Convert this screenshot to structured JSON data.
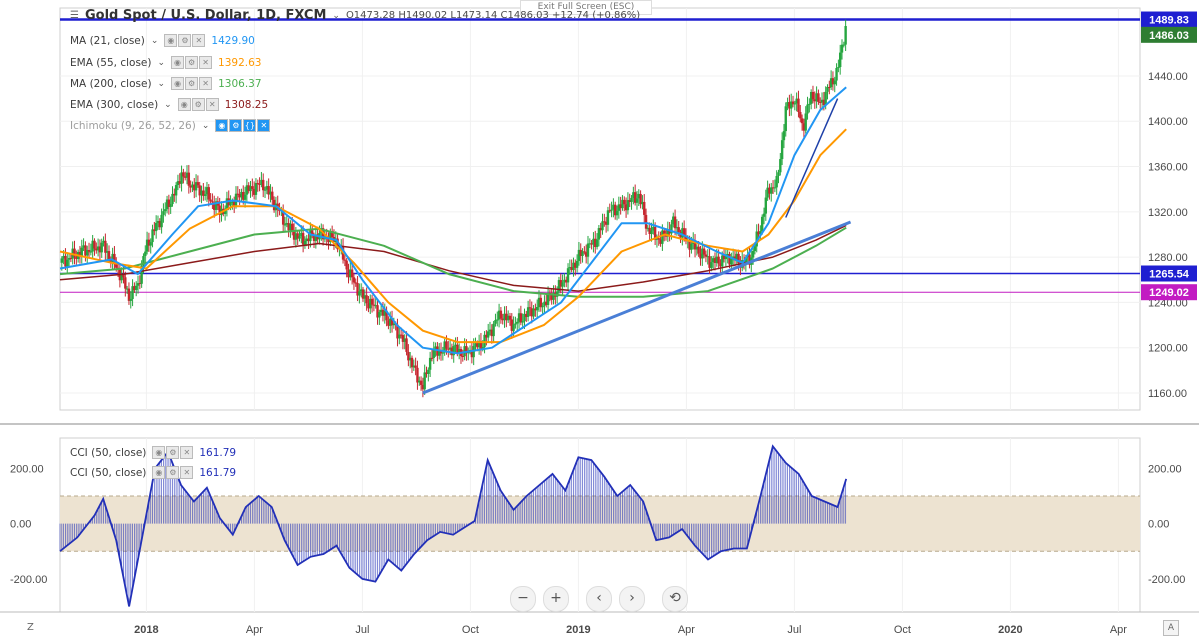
{
  "header": {
    "title": "Gold Spot / U.S. Dollar, 1D, FXCM",
    "ohlc": "O1473.28  H1490.02  L1473.14  C1486.03  +12.74 (+0.86%)",
    "exit_fullscreen": "Exit Full Screen (ESC)"
  },
  "indicators": [
    {
      "label": "MA (21, close)",
      "value": "1429.90",
      "color": "#2196f3"
    },
    {
      "label": "EMA (55, close)",
      "value": "1392.63",
      "color": "#ff9800"
    },
    {
      "label": "MA (200, close)",
      "value": "1306.37",
      "color": "#4caf50"
    },
    {
      "label": "EMA (300, close)",
      "value": "1308.25",
      "color": "#8b1a1a"
    },
    {
      "label": "Ichimoku (9, 26, 52, 26)",
      "value": "",
      "color": "#9e9e9e"
    }
  ],
  "cci_legend": [
    {
      "label": "CCI (50, close)",
      "value": "161.79"
    },
    {
      "label": "CCI (50, close)",
      "value": "161.79"
    }
  ],
  "colors": {
    "up": "#26a640",
    "down": "#c6262e",
    "ma21": "#2196f3",
    "ema55": "#ff9800",
    "ma200": "#4caf50",
    "ema300": "#8b1a1a",
    "hline": "#1f1fd1",
    "magenta": "#c21bc2",
    "trend": "#4a7fd6",
    "cci": "#2230b8",
    "band": "#ede3d1"
  },
  "controls": {
    "zoom_out": "−",
    "zoom_in": "+",
    "prev": "‹",
    "next": "›",
    "reset": "⟲"
  },
  "corner_labels": {
    "left": "Z",
    "right": "A"
  },
  "chart_data": {
    "type": "candlestick",
    "symbol": "XAUUSD",
    "interval": "1D",
    "price_axis": {
      "ticks": [
        1160,
        1200,
        1240,
        1280,
        1320,
        1360,
        1400,
        1440
      ],
      "ylim": [
        1145,
        1500
      ]
    },
    "price_tags": [
      {
        "value": "1489.83",
        "color": "#1f1fd1",
        "text_color": "#ffffff"
      },
      {
        "value": "1486.03",
        "color": "#2e7d32",
        "text_color": "#ffffff"
      },
      {
        "value": "1265.54",
        "color": "#1f1fd1",
        "text_color": "#ffffff"
      },
      {
        "value": "1249.02",
        "color": "#c21bc2",
        "text_color": "#ffffff"
      }
    ],
    "horizontal_lines": [
      {
        "price": 1489.83,
        "color": "#1f1fd1"
      },
      {
        "price": 1265.54,
        "color": "#1f1fd1"
      },
      {
        "price": 1249.02,
        "color": "#c21bc2"
      }
    ],
    "x_axis": {
      "labels": [
        "2018",
        "Apr",
        "Jul",
        "Oct",
        "2019",
        "Apr",
        "Jul",
        "Oct",
        "2020",
        "Apr"
      ],
      "label_dates": [
        2018.0,
        2018.25,
        2018.5,
        2018.75,
        2019.0,
        2019.25,
        2019.5,
        2019.75,
        2020.0,
        2020.25
      ],
      "xlim": [
        2017.8,
        2020.3
      ]
    },
    "price_path": [
      [
        2017.8,
        1275
      ],
      [
        2017.85,
        1285
      ],
      [
        2017.9,
        1290
      ],
      [
        2017.94,
        1265
      ],
      [
        2017.96,
        1245
      ],
      [
        2017.98,
        1255
      ],
      [
        2018.0,
        1290
      ],
      [
        2018.04,
        1320
      ],
      [
        2018.07,
        1340
      ],
      [
        2018.08,
        1355
      ],
      [
        2018.1,
        1345
      ],
      [
        2018.14,
        1335
      ],
      [
        2018.17,
        1320
      ],
      [
        2018.2,
        1330
      ],
      [
        2018.24,
        1340
      ],
      [
        2018.27,
        1345
      ],
      [
        2018.3,
        1325
      ],
      [
        2018.33,
        1305
      ],
      [
        2018.36,
        1295
      ],
      [
        2018.4,
        1300
      ],
      [
        2018.44,
        1295
      ],
      [
        2018.47,
        1265
      ],
      [
        2018.5,
        1245
      ],
      [
        2018.53,
        1235
      ],
      [
        2018.56,
        1225
      ],
      [
        2018.59,
        1210
      ],
      [
        2018.62,
        1180
      ],
      [
        2018.64,
        1165
      ],
      [
        2018.66,
        1195
      ],
      [
        2018.7,
        1200
      ],
      [
        2018.74,
        1195
      ],
      [
        2018.78,
        1205
      ],
      [
        2018.82,
        1230
      ],
      [
        2018.85,
        1220
      ],
      [
        2018.88,
        1230
      ],
      [
        2018.92,
        1240
      ],
      [
        2018.95,
        1250
      ],
      [
        2019.0,
        1280
      ],
      [
        2019.04,
        1295
      ],
      [
        2019.07,
        1320
      ],
      [
        2019.1,
        1325
      ],
      [
        2019.14,
        1335
      ],
      [
        2019.16,
        1305
      ],
      [
        2019.19,
        1295
      ],
      [
        2019.22,
        1310
      ],
      [
        2019.25,
        1295
      ],
      [
        2019.28,
        1285
      ],
      [
        2019.31,
        1275
      ],
      [
        2019.35,
        1280
      ],
      [
        2019.38,
        1275
      ],
      [
        2019.4,
        1280
      ],
      [
        2019.42,
        1305
      ],
      [
        2019.44,
        1340
      ],
      [
        2019.46,
        1345
      ],
      [
        2019.48,
        1410
      ],
      [
        2019.5,
        1420
      ],
      [
        2019.52,
        1395
      ],
      [
        2019.54,
        1425
      ],
      [
        2019.56,
        1415
      ],
      [
        2019.58,
        1430
      ],
      [
        2019.6,
        1445
      ],
      [
        2019.62,
        1486
      ]
    ],
    "ma21_path": [
      [
        2017.8,
        1270
      ],
      [
        2017.92,
        1278
      ],
      [
        2017.98,
        1265
      ],
      [
        2018.06,
        1300
      ],
      [
        2018.12,
        1325
      ],
      [
        2018.2,
        1330
      ],
      [
        2018.3,
        1325
      ],
      [
        2018.38,
        1300
      ],
      [
        2018.44,
        1295
      ],
      [
        2018.5,
        1260
      ],
      [
        2018.58,
        1220
      ],
      [
        2018.64,
        1200
      ],
      [
        2018.72,
        1195
      ],
      [
        2018.8,
        1200
      ],
      [
        2018.88,
        1220
      ],
      [
        2018.96,
        1240
      ],
      [
        2019.04,
        1280
      ],
      [
        2019.1,
        1310
      ],
      [
        2019.16,
        1310
      ],
      [
        2019.24,
        1300
      ],
      [
        2019.32,
        1285
      ],
      [
        2019.38,
        1275
      ],
      [
        2019.44,
        1310
      ],
      [
        2019.5,
        1370
      ],
      [
        2019.56,
        1410
      ],
      [
        2019.62,
        1430
      ]
    ],
    "ema55_path": [
      [
        2017.8,
        1285
      ],
      [
        2017.92,
        1275
      ],
      [
        2018.0,
        1270
      ],
      [
        2018.1,
        1305
      ],
      [
        2018.2,
        1325
      ],
      [
        2018.3,
        1325
      ],
      [
        2018.4,
        1305
      ],
      [
        2018.48,
        1275
      ],
      [
        2018.56,
        1240
      ],
      [
        2018.64,
        1215
      ],
      [
        2018.72,
        1205
      ],
      [
        2018.82,
        1205
      ],
      [
        2018.92,
        1220
      ],
      [
        2019.0,
        1245
      ],
      [
        2019.1,
        1285
      ],
      [
        2019.2,
        1300
      ],
      [
        2019.3,
        1290
      ],
      [
        2019.38,
        1285
      ],
      [
        2019.44,
        1300
      ],
      [
        2019.5,
        1330
      ],
      [
        2019.56,
        1370
      ],
      [
        2019.62,
        1393
      ]
    ],
    "ma200_path": [
      [
        2017.8,
        1265
      ],
      [
        2017.95,
        1270
      ],
      [
        2018.1,
        1285
      ],
      [
        2018.25,
        1300
      ],
      [
        2018.4,
        1305
      ],
      [
        2018.55,
        1290
      ],
      [
        2018.7,
        1265
      ],
      [
        2018.85,
        1250
      ],
      [
        2019.0,
        1245
      ],
      [
        2019.15,
        1245
      ],
      [
        2019.3,
        1250
      ],
      [
        2019.45,
        1270
      ],
      [
        2019.55,
        1290
      ],
      [
        2019.62,
        1306
      ]
    ],
    "ema300_path": [
      [
        2017.8,
        1260
      ],
      [
        2017.95,
        1265
      ],
      [
        2018.1,
        1275
      ],
      [
        2018.25,
        1285
      ],
      [
        2018.4,
        1292
      ],
      [
        2018.55,
        1285
      ],
      [
        2018.7,
        1268
      ],
      [
        2018.85,
        1255
      ],
      [
        2019.0,
        1250
      ],
      [
        2019.15,
        1258
      ],
      [
        2019.3,
        1268
      ],
      [
        2019.45,
        1280
      ],
      [
        2019.55,
        1295
      ],
      [
        2019.62,
        1308
      ]
    ],
    "trendlines": [
      {
        "from": [
          2018.64,
          1160
        ],
        "to": [
          2019.63,
          1311
        ]
      },
      {
        "from": [
          2019.48,
          1315
        ],
        "to": [
          2019.6,
          1420
        ]
      }
    ],
    "cci": {
      "axis_ticks": [
        200,
        0,
        -200
      ],
      "band": [
        -100,
        100
      ],
      "ylim": [
        -320,
        310
      ],
      "path": [
        [
          2017.8,
          -100
        ],
        [
          2017.84,
          -50
        ],
        [
          2017.88,
          30
        ],
        [
          2017.9,
          90
        ],
        [
          2017.93,
          -60
        ],
        [
          2017.96,
          -300
        ],
        [
          2017.99,
          -50
        ],
        [
          2018.02,
          200
        ],
        [
          2018.05,
          260
        ],
        [
          2018.08,
          140
        ],
        [
          2018.11,
          80
        ],
        [
          2018.14,
          130
        ],
        [
          2018.17,
          20
        ],
        [
          2018.2,
          -40
        ],
        [
          2018.23,
          60
        ],
        [
          2018.26,
          100
        ],
        [
          2018.29,
          60
        ],
        [
          2018.32,
          -60
        ],
        [
          2018.35,
          -150
        ],
        [
          2018.38,
          -120
        ],
        [
          2018.41,
          -110
        ],
        [
          2018.44,
          -80
        ],
        [
          2018.47,
          -160
        ],
        [
          2018.5,
          -200
        ],
        [
          2018.53,
          -210
        ],
        [
          2018.56,
          -130
        ],
        [
          2018.59,
          -170
        ],
        [
          2018.62,
          -110
        ],
        [
          2018.65,
          -60
        ],
        [
          2018.68,
          -30
        ],
        [
          2018.71,
          -40
        ],
        [
          2018.74,
          -10
        ],
        [
          2018.76,
          10
        ],
        [
          2018.79,
          230
        ],
        [
          2018.82,
          120
        ],
        [
          2018.85,
          50
        ],
        [
          2018.88,
          100
        ],
        [
          2018.91,
          140
        ],
        [
          2018.94,
          180
        ],
        [
          2018.97,
          120
        ],
        [
          2019.0,
          240
        ],
        [
          2019.03,
          230
        ],
        [
          2019.06,
          170
        ],
        [
          2019.09,
          100
        ],
        [
          2019.12,
          140
        ],
        [
          2019.15,
          80
        ],
        [
          2019.18,
          -60
        ],
        [
          2019.21,
          -50
        ],
        [
          2019.24,
          -20
        ],
        [
          2019.27,
          -80
        ],
        [
          2019.3,
          -130
        ],
        [
          2019.33,
          -100
        ],
        [
          2019.36,
          -90
        ],
        [
          2019.39,
          -90
        ],
        [
          2019.42,
          90
        ],
        [
          2019.45,
          280
        ],
        [
          2019.48,
          220
        ],
        [
          2019.51,
          180
        ],
        [
          2019.54,
          100
        ],
        [
          2019.57,
          80
        ],
        [
          2019.6,
          60
        ],
        [
          2019.62,
          162
        ]
      ]
    }
  }
}
